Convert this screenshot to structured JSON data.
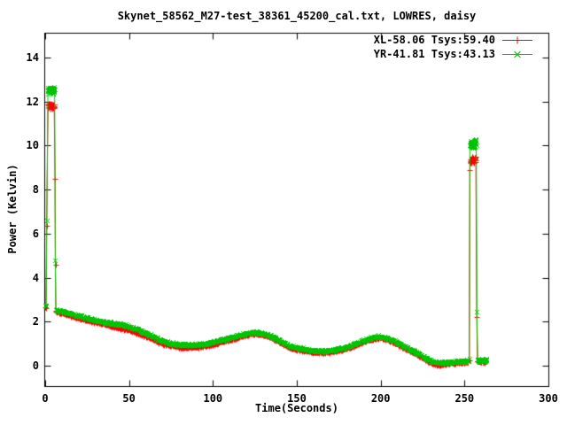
{
  "chart_data": {
    "type": "scatter",
    "style": "linespoints",
    "title": "Skynet_58562_M27-test_38361_45200_cal.txt, LOWRES, daisy",
    "xlabel": "Time(Seconds)",
    "ylabel": "Power (Kelvin)",
    "xlim": [
      0,
      300
    ],
    "ylim": [
      -0.9,
      15.1
    ],
    "xticks": [
      0,
      50,
      100,
      150,
      200,
      250,
      300
    ],
    "yticks": [
      0,
      2,
      4,
      6,
      8,
      10,
      12,
      14
    ],
    "grid": false,
    "legend_position": "top-right-inside",
    "background": "#ffffff",
    "border_color": "#000000",
    "series": [
      {
        "name": "XL-58.06 Tsys:59.40",
        "color": "#ff0000",
        "marker": "plus",
        "description": "noisy daisy-scan power trace with calibration spikes at start (level 11.8 K, t=1.7-5.5s) and end (level 9.35 K, t=253.5-256.8s)",
        "keypoints": [
          [
            5,
            2.5
          ],
          [
            10,
            2.4
          ],
          [
            15,
            2.3
          ],
          [
            20,
            2.18
          ],
          [
            25,
            2.08
          ],
          [
            30,
            1.98
          ],
          [
            35,
            1.92
          ],
          [
            40,
            1.8
          ],
          [
            44,
            1.72
          ],
          [
            48,
            1.68
          ],
          [
            55,
            1.5
          ],
          [
            62,
            1.3
          ],
          [
            68,
            1.05
          ],
          [
            75,
            0.92
          ],
          [
            80,
            0.85
          ],
          [
            85,
            0.85
          ],
          [
            90,
            0.85
          ],
          [
            95,
            0.9
          ],
          [
            100,
            0.98
          ],
          [
            105,
            1.1
          ],
          [
            110,
            1.2
          ],
          [
            115,
            1.3
          ],
          [
            120,
            1.42
          ],
          [
            125,
            1.48
          ],
          [
            130,
            1.42
          ],
          [
            135,
            1.28
          ],
          [
            140,
            1.05
          ],
          [
            145,
            0.85
          ],
          [
            150,
            0.75
          ],
          [
            155,
            0.68
          ],
          [
            160,
            0.63
          ],
          [
            165,
            0.6
          ],
          [
            170,
            0.64
          ],
          [
            175,
            0.7
          ],
          [
            180,
            0.8
          ],
          [
            185,
            0.95
          ],
          [
            190,
            1.1
          ],
          [
            195,
            1.22
          ],
          [
            198,
            1.28
          ],
          [
            202,
            1.25
          ],
          [
            207,
            1.1
          ],
          [
            212,
            0.9
          ],
          [
            217,
            0.7
          ],
          [
            222,
            0.5
          ],
          [
            227,
            0.28
          ],
          [
            231,
            0.12
          ],
          [
            235,
            0.05
          ],
          [
            240,
            0.1
          ],
          [
            245,
            0.13
          ],
          [
            250,
            0.16
          ],
          [
            252.3,
            0.18
          ]
        ],
        "segments": [
          {
            "type": "points",
            "pts": [
              [
                0.2,
                2.65
              ],
              [
                0.45,
                2.6
              ],
              [
                0.9,
                6.35
              ]
            ]
          },
          {
            "type": "plateau",
            "t0": 1.7,
            "t1": 5.5,
            "dt": 0.09,
            "level": 11.8,
            "noise": 0.16
          },
          {
            "type": "points",
            "pts": [
              [
                5.9,
                8.5
              ],
              [
                6.1,
                4.6
              ]
            ]
          },
          {
            "type": "curve",
            "t0": 6.4,
            "t1": 252.3,
            "dt": 0.2,
            "noise": 0.07
          },
          {
            "type": "points",
            "pts": [
              [
                252.9,
                0.25
              ],
              [
                253.2,
                8.9
              ]
            ]
          },
          {
            "type": "plateau",
            "t0": 253.5,
            "t1": 256.8,
            "dt": 0.09,
            "level": 9.35,
            "noise": 0.2
          },
          {
            "type": "points",
            "pts": [
              [
                257.3,
                2.2
              ]
            ]
          },
          {
            "type": "plateau",
            "t0": 257.7,
            "t1": 262.5,
            "dt": 0.11,
            "level": 0.2,
            "noise": 0.07
          }
        ]
      },
      {
        "name": "YR-41.81 Tsys:43.13",
        "color": "#00c400",
        "marker": "x",
        "description": "noisy daisy-scan power trace with calibration spikes at start (level 12.5 K, t=1.5-5.6s) and end (level 10.1 K, t=253.2-257.0s)",
        "keypoints": [
          [
            5,
            2.55
          ],
          [
            10,
            2.47
          ],
          [
            15,
            2.37
          ],
          [
            20,
            2.27
          ],
          [
            25,
            2.17
          ],
          [
            30,
            2.07
          ],
          [
            35,
            2.0
          ],
          [
            40,
            1.92
          ],
          [
            44,
            1.88
          ],
          [
            48,
            1.82
          ],
          [
            55,
            1.65
          ],
          [
            62,
            1.42
          ],
          [
            68,
            1.18
          ],
          [
            75,
            1.02
          ],
          [
            80,
            0.97
          ],
          [
            85,
            0.96
          ],
          [
            90,
            0.96
          ],
          [
            95,
            1.0
          ],
          [
            100,
            1.07
          ],
          [
            105,
            1.17
          ],
          [
            110,
            1.27
          ],
          [
            115,
            1.37
          ],
          [
            120,
            1.47
          ],
          [
            125,
            1.52
          ],
          [
            130,
            1.47
          ],
          [
            135,
            1.32
          ],
          [
            140,
            1.12
          ],
          [
            145,
            0.92
          ],
          [
            150,
            0.82
          ],
          [
            155,
            0.74
          ],
          [
            160,
            0.69
          ],
          [
            165,
            0.66
          ],
          [
            170,
            0.69
          ],
          [
            175,
            0.76
          ],
          [
            180,
            0.86
          ],
          [
            185,
            1.0
          ],
          [
            190,
            1.15
          ],
          [
            195,
            1.28
          ],
          [
            198,
            1.33
          ],
          [
            202,
            1.3
          ],
          [
            207,
            1.16
          ],
          [
            212,
            0.96
          ],
          [
            217,
            0.76
          ],
          [
            222,
            0.56
          ],
          [
            227,
            0.34
          ],
          [
            231,
            0.18
          ],
          [
            235,
            0.13
          ],
          [
            240,
            0.16
          ],
          [
            245,
            0.19
          ],
          [
            250,
            0.21
          ],
          [
            252.3,
            0.22
          ]
        ],
        "segments": [
          {
            "type": "points",
            "pts": [
              [
                0.15,
                2.72
              ],
              [
                0.4,
                2.75
              ],
              [
                0.65,
                2.68
              ],
              [
                0.95,
                6.6
              ]
            ]
          },
          {
            "type": "plateau",
            "t0": 1.5,
            "t1": 5.6,
            "dt": 0.08,
            "level": 12.5,
            "noise": 0.17
          },
          {
            "type": "points",
            "pts": [
              [
                6.0,
                4.8
              ]
            ]
          },
          {
            "type": "curve",
            "t0": 6.3,
            "t1": 252.3,
            "dt": 0.2,
            "noise": 0.07
          },
          {
            "type": "points",
            "pts": [
              [
                252.8,
                0.32
              ]
            ]
          },
          {
            "type": "plateau",
            "t0": 253.2,
            "t1": 257.0,
            "dt": 0.08,
            "level": 10.1,
            "noise": 0.24
          },
          {
            "type": "points",
            "pts": [
              [
                257.4,
                2.45
              ]
            ]
          },
          {
            "type": "plateau",
            "t0": 257.9,
            "t1": 263.3,
            "dt": 0.1,
            "level": 0.25,
            "noise": 0.08
          }
        ]
      }
    ]
  }
}
